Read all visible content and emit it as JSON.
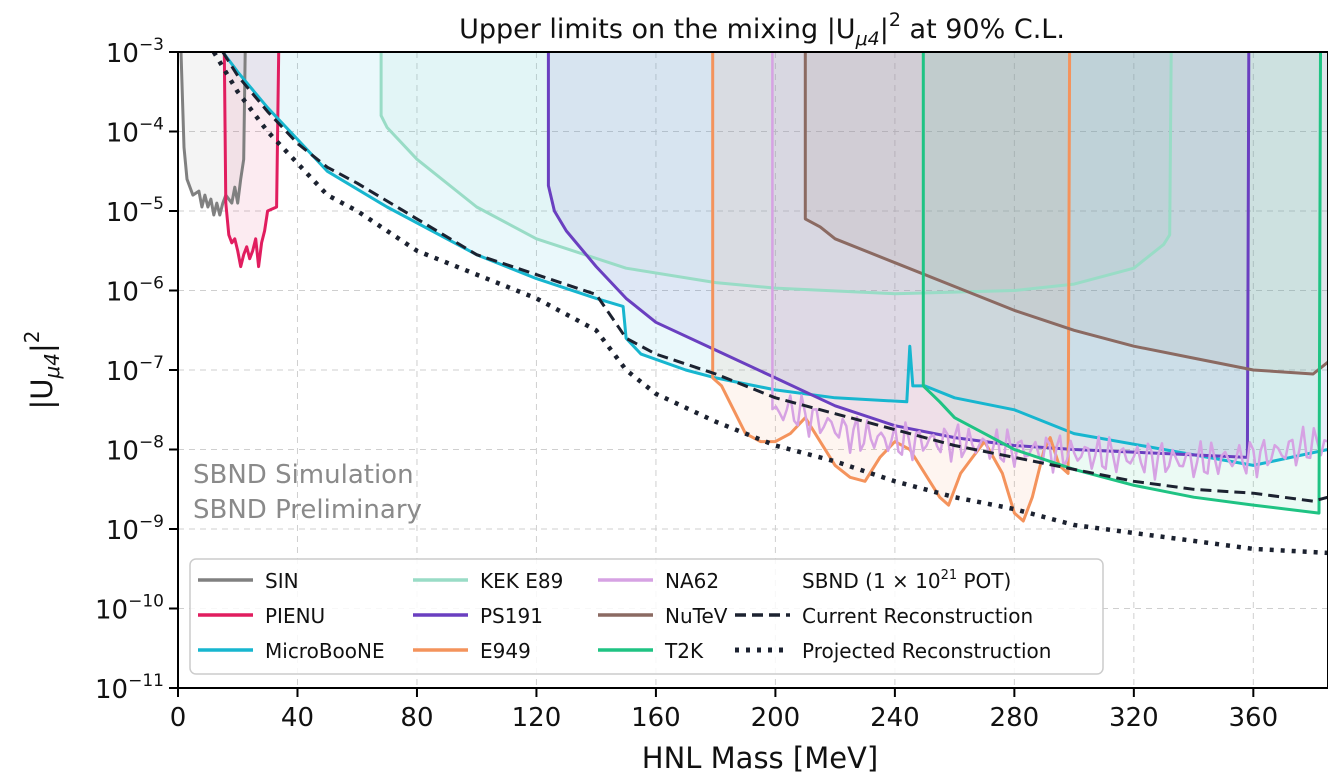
{
  "chart_data": {
    "type": "line",
    "title": "Upper limits on the mixing |U_μ4|² at 90% C.L.",
    "title_parts": {
      "pre": "Upper limits on the mixing |U",
      "sub": "μ4",
      "mid": "|",
      "sup": "2",
      "post": " at 90% C.L."
    },
    "xlabel": "HNL Mass [MeV]",
    "ylabel_parts": {
      "pre": "|U",
      "sub": "μ4",
      "mid": "|",
      "sup": "2"
    },
    "xlim": [
      0,
      385
    ],
    "ylim_exp": [
      -11,
      -3
    ],
    "y_scale": "log",
    "grid": true,
    "x_ticks": [
      0,
      40,
      80,
      120,
      160,
      200,
      240,
      280,
      320,
      360
    ],
    "y_ticks": [
      {
        "base": "10",
        "exp": "−3",
        "value": -3
      },
      {
        "base": "10",
        "exp": "−4",
        "value": -4
      },
      {
        "base": "10",
        "exp": "−5",
        "value": -5
      },
      {
        "base": "10",
        "exp": "−6",
        "value": -6
      },
      {
        "base": "10",
        "exp": "−7",
        "value": -7
      },
      {
        "base": "10",
        "exp": "−8",
        "value": -8
      },
      {
        "base": "10",
        "exp": "−9",
        "value": -9
      },
      {
        "base": "10",
        "exp": "−10",
        "value": -10
      },
      {
        "base": "10",
        "exp": "−11",
        "value": -11
      }
    ],
    "annotations": [
      "SBND Simulation",
      "SBND Preliminary"
    ],
    "legend_placement": "lower-left",
    "legend_header": "SBND  (1 × 10²¹ POT)",
    "legend_header_parts": {
      "pre": "SBND  (1 × 10",
      "sup": "21",
      "post": " POT)"
    },
    "series": [
      {
        "name": "SIN",
        "color": "#808080",
        "style": "solid",
        "points": [
          [
            1,
            -3
          ],
          [
            1.5,
            -3.6
          ],
          [
            2,
            -4.2
          ],
          [
            3,
            -4.6
          ],
          [
            5,
            -4.8
          ],
          [
            7,
            -4.75
          ],
          [
            8,
            -4.95
          ],
          [
            9,
            -4.8
          ],
          [
            10,
            -4.95
          ],
          [
            11,
            -4.85
          ],
          [
            12,
            -5.05
          ],
          [
            13,
            -4.9
          ],
          [
            14,
            -5.05
          ],
          [
            15,
            -4.9
          ],
          [
            16,
            -4.8
          ],
          [
            18,
            -4.9
          ],
          [
            19,
            -4.7
          ],
          [
            20,
            -4.9
          ],
          [
            21,
            -4.6
          ],
          [
            22,
            -4.35
          ],
          [
            22.5,
            -3
          ]
        ]
      },
      {
        "name": "PIENU",
        "color": "#e11d5f",
        "style": "solid",
        "points": [
          [
            15.5,
            -3
          ],
          [
            16,
            -4.9
          ],
          [
            17,
            -5.3
          ],
          [
            18,
            -5.4
          ],
          [
            19,
            -5.35
          ],
          [
            20,
            -5.5
          ],
          [
            21,
            -5.7
          ],
          [
            22,
            -5.55
          ],
          [
            23,
            -5.45
          ],
          [
            24,
            -5.6
          ],
          [
            25,
            -5.5
          ],
          [
            26,
            -5.35
          ],
          [
            27,
            -5.7
          ],
          [
            28,
            -5.4
          ],
          [
            29,
            -5.25
          ],
          [
            30,
            -5.0
          ],
          [
            33,
            -4.95
          ],
          [
            33.7,
            -3
          ]
        ]
      },
      {
        "name": "MicroBooNE",
        "color": "#17b6cf",
        "style": "solid",
        "points": [
          [
            15,
            -3
          ],
          [
            20,
            -3.25
          ],
          [
            30,
            -3.7
          ],
          [
            40,
            -4.1
          ],
          [
            50,
            -4.5
          ],
          [
            70,
            -4.95
          ],
          [
            100,
            -5.55
          ],
          [
            120,
            -5.85
          ],
          [
            140,
            -6.1
          ],
          [
            149,
            -6.2
          ],
          [
            150,
            -6.6
          ],
          [
            155,
            -6.8
          ],
          [
            170,
            -7.0
          ],
          [
            180,
            -7.1
          ],
          [
            200,
            -7.25
          ],
          [
            220,
            -7.35
          ],
          [
            244,
            -7.4
          ],
          [
            245,
            -6.7
          ],
          [
            246,
            -7.2
          ],
          [
            250,
            -7.2
          ],
          [
            260,
            -7.35
          ],
          [
            280,
            -7.5
          ],
          [
            300,
            -7.8
          ],
          [
            330,
            -8.0
          ],
          [
            360,
            -8.2
          ],
          [
            385,
            -8.0
          ]
        ]
      },
      {
        "name": "KEK E89",
        "color": "#99dcc6",
        "style": "solid",
        "points": [
          [
            68,
            -3
          ],
          [
            68,
            -3.8
          ],
          [
            70,
            -3.95
          ],
          [
            80,
            -4.35
          ],
          [
            100,
            -4.95
          ],
          [
            120,
            -5.35
          ],
          [
            150,
            -5.72
          ],
          [
            180,
            -5.9
          ],
          [
            200,
            -5.97
          ],
          [
            240,
            -6.04
          ],
          [
            280,
            -6.0
          ],
          [
            300,
            -5.92
          ],
          [
            320,
            -5.72
          ],
          [
            330,
            -5.42
          ],
          [
            332,
            -5.3
          ],
          [
            332.5,
            -3
          ]
        ]
      },
      {
        "name": "PS191",
        "color": "#6a3fc0",
        "style": "solid",
        "points": [
          [
            124,
            -3
          ],
          [
            124,
            -4.68
          ],
          [
            126,
            -5.0
          ],
          [
            130,
            -5.25
          ],
          [
            140,
            -5.7
          ],
          [
            150,
            -6.1
          ],
          [
            160,
            -6.4
          ],
          [
            180,
            -6.75
          ],
          [
            200,
            -7.1
          ],
          [
            220,
            -7.45
          ],
          [
            240,
            -7.7
          ],
          [
            260,
            -7.85
          ],
          [
            280,
            -7.95
          ],
          [
            300,
            -8.0
          ],
          [
            330,
            -8.05
          ],
          [
            358,
            -8.1
          ],
          [
            358.5,
            -3
          ]
        ]
      },
      {
        "name": "E949",
        "color": "#f4935c",
        "style": "solid",
        "points": [
          [
            179,
            -3
          ],
          [
            179,
            -7.1
          ],
          [
            182,
            -7.2
          ],
          [
            186,
            -7.5
          ],
          [
            190,
            -7.8
          ],
          [
            195,
            -7.9
          ],
          [
            200,
            -7.9
          ],
          [
            205,
            -7.8
          ],
          [
            210,
            -7.6
          ],
          [
            215,
            -7.9
          ],
          [
            220,
            -8.2
          ],
          [
            225,
            -8.35
          ],
          [
            230,
            -8.4
          ],
          [
            235,
            -8.1
          ],
          [
            240,
            -7.9
          ],
          [
            245,
            -8.0
          ],
          [
            250,
            -8.3
          ],
          [
            255,
            -8.6
          ],
          [
            258,
            -8.7
          ],
          [
            262,
            -8.3
          ],
          [
            266,
            -8.1
          ],
          [
            270,
            -7.9
          ],
          [
            276,
            -8.3
          ],
          [
            280,
            -8.8
          ],
          [
            283,
            -8.9
          ],
          [
            286,
            -8.6
          ],
          [
            290,
            -8.0
          ],
          [
            292,
            -7.85
          ],
          [
            295,
            -8.2
          ],
          [
            298,
            -8.3
          ],
          [
            298.5,
            -3
          ]
        ]
      },
      {
        "name": "NA62",
        "color": "#d6a2e3",
        "style": "noisy",
        "points": [
          [
            199,
            -3
          ],
          [
            199,
            -7.55
          ],
          [
            205,
            -7.5
          ],
          [
            215,
            -7.65
          ],
          [
            225,
            -7.8
          ],
          [
            240,
            -7.9
          ],
          [
            260,
            -7.9
          ],
          [
            280,
            -8.0
          ],
          [
            300,
            -8.05
          ],
          [
            320,
            -8.1
          ],
          [
            340,
            -8.15
          ],
          [
            360,
            -8.1
          ],
          [
            385,
            -7.9
          ]
        ]
      },
      {
        "name": "NuTeV",
        "color": "#8b6a62",
        "style": "solid",
        "points": [
          [
            210,
            -3
          ],
          [
            210,
            -5.1
          ],
          [
            215,
            -5.2
          ],
          [
            220,
            -5.35
          ],
          [
            240,
            -5.65
          ],
          [
            260,
            -5.95
          ],
          [
            280,
            -6.25
          ],
          [
            300,
            -6.5
          ],
          [
            320,
            -6.7
          ],
          [
            340,
            -6.85
          ],
          [
            360,
            -7.0
          ],
          [
            380,
            -7.05
          ],
          [
            385,
            -6.9
          ]
        ]
      },
      {
        "name": "T2K",
        "color": "#1fc383",
        "style": "solid",
        "points": [
          [
            249.5,
            -3
          ],
          [
            249.5,
            -7.2
          ],
          [
            255,
            -7.4
          ],
          [
            260,
            -7.6
          ],
          [
            270,
            -7.8
          ],
          [
            280,
            -8.0
          ],
          [
            300,
            -8.25
          ],
          [
            320,
            -8.45
          ],
          [
            340,
            -8.6
          ],
          [
            360,
            -8.7
          ],
          [
            382,
            -8.8
          ],
          [
            382.5,
            -3
          ]
        ]
      },
      {
        "name": "Current Reconstruction",
        "color": "#1c2230",
        "style": "dashed",
        "points": [
          [
            15,
            -3
          ],
          [
            20,
            -3.3
          ],
          [
            30,
            -3.75
          ],
          [
            40,
            -4.15
          ],
          [
            50,
            -4.45
          ],
          [
            60,
            -4.65
          ],
          [
            80,
            -5.1
          ],
          [
            100,
            -5.55
          ],
          [
            120,
            -5.8
          ],
          [
            140,
            -6.05
          ],
          [
            150,
            -6.6
          ],
          [
            160,
            -6.8
          ],
          [
            180,
            -7.05
          ],
          [
            200,
            -7.35
          ],
          [
            220,
            -7.55
          ],
          [
            240,
            -7.75
          ],
          [
            260,
            -7.95
          ],
          [
            280,
            -8.1
          ],
          [
            300,
            -8.25
          ],
          [
            320,
            -8.4
          ],
          [
            340,
            -8.5
          ],
          [
            360,
            -8.55
          ],
          [
            380,
            -8.65
          ],
          [
            385,
            -8.6
          ]
        ]
      },
      {
        "name": "Projected Reconstruction",
        "color": "#1c2230",
        "style": "dotted",
        "points": [
          [
            12,
            -3
          ],
          [
            20,
            -3.5
          ],
          [
            30,
            -4.0
          ],
          [
            40,
            -4.4
          ],
          [
            50,
            -4.8
          ],
          [
            60,
            -5.0
          ],
          [
            80,
            -5.5
          ],
          [
            100,
            -5.8
          ],
          [
            120,
            -6.1
          ],
          [
            140,
            -6.5
          ],
          [
            150,
            -7.0
          ],
          [
            160,
            -7.3
          ],
          [
            180,
            -7.65
          ],
          [
            200,
            -7.95
          ],
          [
            220,
            -8.15
          ],
          [
            240,
            -8.4
          ],
          [
            260,
            -8.6
          ],
          [
            280,
            -8.75
          ],
          [
            300,
            -8.95
          ],
          [
            320,
            -9.05
          ],
          [
            340,
            -9.15
          ],
          [
            360,
            -9.25
          ],
          [
            385,
            -9.3
          ]
        ]
      }
    ],
    "legend_entries": [
      {
        "col": 0,
        "row": 0,
        "name": "SIN",
        "color": "#808080",
        "style": "solid"
      },
      {
        "col": 0,
        "row": 1,
        "name": "PIENU",
        "color": "#e11d5f",
        "style": "solid"
      },
      {
        "col": 0,
        "row": 2,
        "name": "MicroBooNE",
        "color": "#17b6cf",
        "style": "solid"
      },
      {
        "col": 1,
        "row": 0,
        "name": "KEK E89",
        "color": "#99dcc6",
        "style": "solid"
      },
      {
        "col": 1,
        "row": 1,
        "name": "PS191",
        "color": "#6a3fc0",
        "style": "solid"
      },
      {
        "col": 1,
        "row": 2,
        "name": "E949",
        "color": "#f4935c",
        "style": "solid"
      },
      {
        "col": 2,
        "row": 0,
        "name": "NA62",
        "color": "#d6a2e3",
        "style": "solid"
      },
      {
        "col": 2,
        "row": 1,
        "name": "NuTeV",
        "color": "#8b6a62",
        "style": "solid"
      },
      {
        "col": 2,
        "row": 2,
        "name": "T2K",
        "color": "#1fc383",
        "style": "solid"
      },
      {
        "col": 3,
        "row": 1,
        "name": "Current Reconstruction",
        "color": "#1c2230",
        "style": "dashed"
      },
      {
        "col": 3,
        "row": 2,
        "name": "Projected Reconstruction",
        "color": "#1c2230",
        "style": "dotted"
      }
    ]
  }
}
